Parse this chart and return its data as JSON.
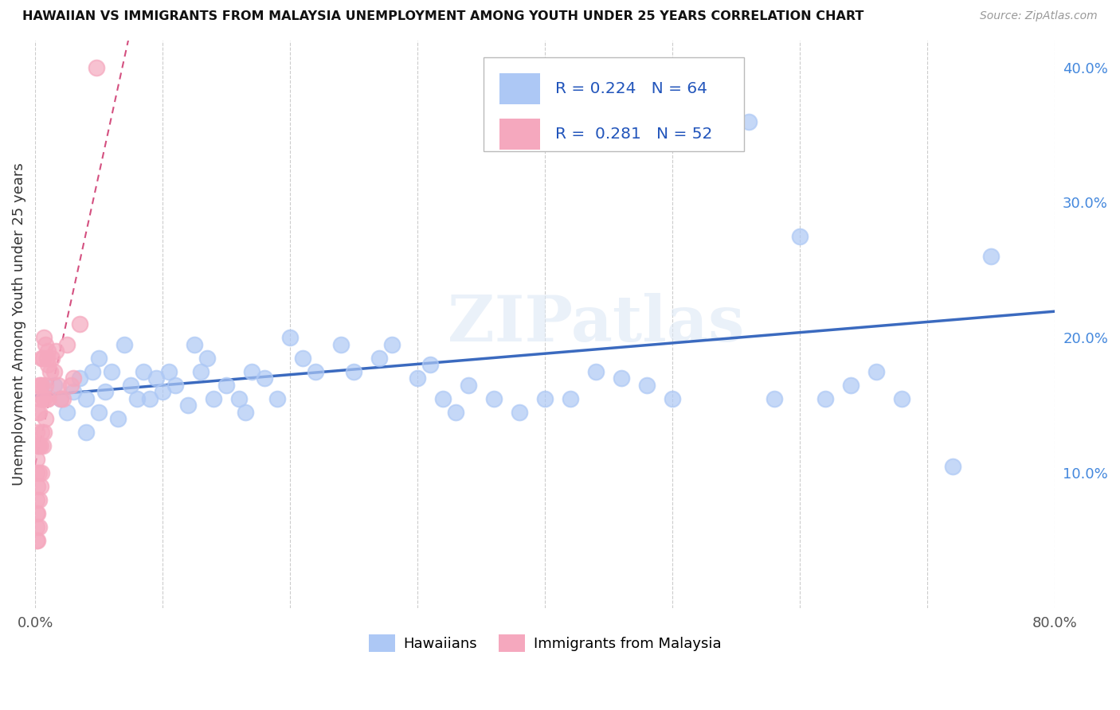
{
  "title": "HAWAIIAN VS IMMIGRANTS FROM MALAYSIA UNEMPLOYMENT AMONG YOUTH UNDER 25 YEARS CORRELATION CHART",
  "source": "Source: ZipAtlas.com",
  "ylabel": "Unemployment Among Youth under 25 years",
  "xlim": [
    0.0,
    0.8
  ],
  "ylim": [
    0.0,
    0.42
  ],
  "xtick_vals": [
    0.0,
    0.1,
    0.2,
    0.3,
    0.4,
    0.5,
    0.6,
    0.7,
    0.8
  ],
  "xticklabels": [
    "0.0%",
    "",
    "",
    "",
    "",
    "",
    "",
    "",
    "80.0%"
  ],
  "ytick_vals": [
    0.0,
    0.1,
    0.2,
    0.3,
    0.4
  ],
  "yticklabels_right": [
    "",
    "10.0%",
    "20.0%",
    "30.0%",
    "40.0%"
  ],
  "hawaiian_color": "#adc8f5",
  "malaysia_color": "#f5a8be",
  "trendline_hawaiian_color": "#3b6abf",
  "trendline_malaysia_color": "#d45080",
  "legend_r_hawaiian": "0.224",
  "legend_n_hawaiian": "64",
  "legend_r_malaysia": "0.281",
  "legend_n_malaysia": "52",
  "legend_label_hawaiian": "Hawaiians",
  "legend_label_malaysia": "Immigrants from Malaysia",
  "watermark": "ZIPatlas",
  "hawaiian_x": [
    0.015,
    0.02,
    0.025,
    0.03,
    0.035,
    0.04,
    0.04,
    0.045,
    0.05,
    0.05,
    0.055,
    0.06,
    0.065,
    0.07,
    0.075,
    0.08,
    0.085,
    0.09,
    0.095,
    0.1,
    0.105,
    0.11,
    0.12,
    0.125,
    0.13,
    0.135,
    0.14,
    0.15,
    0.16,
    0.165,
    0.17,
    0.18,
    0.19,
    0.2,
    0.21,
    0.22,
    0.24,
    0.25,
    0.27,
    0.28,
    0.3,
    0.31,
    0.32,
    0.33,
    0.34,
    0.36,
    0.38,
    0.4,
    0.42,
    0.44,
    0.46,
    0.48,
    0.5,
    0.52,
    0.54,
    0.56,
    0.58,
    0.6,
    0.62,
    0.64,
    0.66,
    0.68,
    0.72,
    0.75
  ],
  "hawaiian_y": [
    0.165,
    0.155,
    0.145,
    0.16,
    0.17,
    0.13,
    0.155,
    0.175,
    0.145,
    0.185,
    0.16,
    0.175,
    0.14,
    0.195,
    0.165,
    0.155,
    0.175,
    0.155,
    0.17,
    0.16,
    0.175,
    0.165,
    0.15,
    0.195,
    0.175,
    0.185,
    0.155,
    0.165,
    0.155,
    0.145,
    0.175,
    0.17,
    0.155,
    0.2,
    0.185,
    0.175,
    0.195,
    0.175,
    0.185,
    0.195,
    0.17,
    0.18,
    0.155,
    0.145,
    0.165,
    0.155,
    0.145,
    0.155,
    0.155,
    0.175,
    0.17,
    0.165,
    0.155,
    0.37,
    0.37,
    0.36,
    0.155,
    0.275,
    0.155,
    0.165,
    0.175,
    0.155,
    0.105,
    0.26
  ],
  "malaysia_x": [
    0.001,
    0.001,
    0.001,
    0.001,
    0.001,
    0.001,
    0.001,
    0.002,
    0.002,
    0.002,
    0.002,
    0.002,
    0.003,
    0.003,
    0.003,
    0.003,
    0.003,
    0.003,
    0.004,
    0.004,
    0.004,
    0.004,
    0.005,
    0.005,
    0.005,
    0.005,
    0.006,
    0.006,
    0.006,
    0.007,
    0.007,
    0.007,
    0.008,
    0.008,
    0.008,
    0.009,
    0.009,
    0.01,
    0.01,
    0.01,
    0.012,
    0.013,
    0.015,
    0.016,
    0.018,
    0.02,
    0.022,
    0.025,
    0.028,
    0.03,
    0.035,
    0.048
  ],
  "malaysia_y": [
    0.05,
    0.06,
    0.07,
    0.08,
    0.1,
    0.11,
    0.13,
    0.05,
    0.07,
    0.09,
    0.12,
    0.145,
    0.06,
    0.08,
    0.1,
    0.12,
    0.145,
    0.165,
    0.09,
    0.12,
    0.155,
    0.165,
    0.1,
    0.13,
    0.165,
    0.185,
    0.12,
    0.155,
    0.185,
    0.13,
    0.155,
    0.2,
    0.14,
    0.165,
    0.195,
    0.155,
    0.185,
    0.155,
    0.18,
    0.19,
    0.175,
    0.185,
    0.175,
    0.19,
    0.165,
    0.155,
    0.155,
    0.195,
    0.165,
    0.17,
    0.21,
    0.4
  ]
}
